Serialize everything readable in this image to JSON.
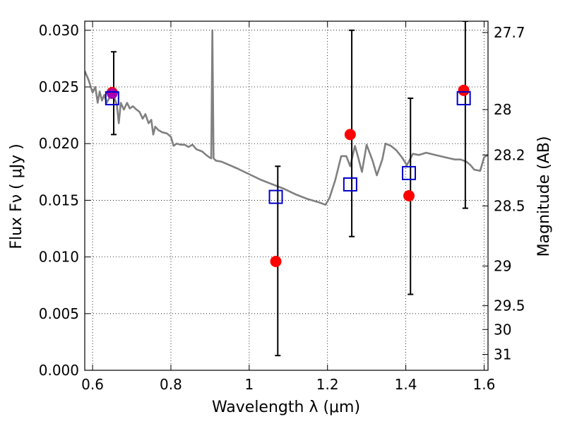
{
  "chart_data": {
    "type": "scatter",
    "title": "",
    "xlabel": "Wavelength  λ (μm)",
    "ylabel": "Flux  Fν  ( μJy )",
    "ylabel_right": "Magnitude (AB)",
    "xlim": [
      0.58,
      1.61
    ],
    "ylim": [
      0.0,
      0.0308
    ],
    "grid": true,
    "grid_style": "dotted",
    "x_ticks": [
      0.6,
      0.8,
      1.0,
      1.2,
      1.4,
      1.6
    ],
    "x_tick_labels": [
      "0.6",
      "0.8",
      "1",
      "1.2",
      "1.4",
      "1.6"
    ],
    "y_ticks": [
      0.0,
      0.005,
      0.01,
      0.015,
      0.02,
      0.025,
      0.03
    ],
    "y_tick_labels": [
      "0.000",
      "0.005",
      "0.010",
      "0.015",
      "0.020",
      "0.025",
      "0.030"
    ],
    "right_ticks": [
      {
        "flux": 0.0298,
        "label": "27.7"
      },
      {
        "flux": 0.023,
        "label": "28"
      },
      {
        "flux": 0.019,
        "label": "28.2"
      },
      {
        "flux": 0.0145,
        "label": "28.5"
      },
      {
        "flux": 0.0092,
        "label": "29"
      },
      {
        "flux": 0.0057,
        "label": "29.5"
      },
      {
        "flux": 0.0036,
        "label": "30"
      },
      {
        "flux": 0.0014,
        "label": "31"
      }
    ],
    "series": [
      {
        "kind": "line",
        "color": "#808080",
        "points": [
          [
            0.58,
            0.0264
          ],
          [
            0.59,
            0.0256
          ],
          [
            0.6,
            0.0245
          ],
          [
            0.607,
            0.025
          ],
          [
            0.613,
            0.0236
          ],
          [
            0.618,
            0.0246
          ],
          [
            0.624,
            0.0238
          ],
          [
            0.63,
            0.0243
          ],
          [
            0.636,
            0.0236
          ],
          [
            0.642,
            0.024
          ],
          [
            0.648,
            0.0244
          ],
          [
            0.655,
            0.0241
          ],
          [
            0.662,
            0.0234
          ],
          [
            0.667,
            0.0218
          ],
          [
            0.672,
            0.0236
          ],
          [
            0.68,
            0.023
          ],
          [
            0.688,
            0.0236
          ],
          [
            0.695,
            0.0231
          ],
          [
            0.703,
            0.0233
          ],
          [
            0.712,
            0.023
          ],
          [
            0.72,
            0.0228
          ],
          [
            0.728,
            0.0222
          ],
          [
            0.735,
            0.0226
          ],
          [
            0.743,
            0.0218
          ],
          [
            0.75,
            0.0221
          ],
          [
            0.755,
            0.0208
          ],
          [
            0.76,
            0.0215
          ],
          [
            0.768,
            0.0212
          ],
          [
            0.778,
            0.021
          ],
          [
            0.79,
            0.0209
          ],
          [
            0.8,
            0.0206
          ],
          [
            0.807,
            0.0198
          ],
          [
            0.815,
            0.02
          ],
          [
            0.825,
            0.0199
          ],
          [
            0.835,
            0.0199
          ],
          [
            0.845,
            0.0197
          ],
          [
            0.855,
            0.0199
          ],
          [
            0.865,
            0.0195
          ],
          [
            0.88,
            0.0193
          ],
          [
            0.89,
            0.019
          ],
          [
            0.898,
            0.0188
          ],
          [
            0.903,
            0.0187
          ],
          [
            0.906,
            0.03
          ],
          [
            0.909,
            0.0187
          ],
          [
            0.915,
            0.0185
          ],
          [
            0.93,
            0.0184
          ],
          [
            0.95,
            0.0181
          ],
          [
            0.97,
            0.0178
          ],
          [
            1.0,
            0.0173
          ],
          [
            1.03,
            0.0168
          ],
          [
            1.06,
            0.0164
          ],
          [
            1.09,
            0.016
          ],
          [
            1.12,
            0.0155
          ],
          [
            1.15,
            0.0151
          ],
          [
            1.18,
            0.0148
          ],
          [
            1.195,
            0.0146
          ],
          [
            1.205,
            0.0152
          ],
          [
            1.22,
            0.0168
          ],
          [
            1.235,
            0.0189
          ],
          [
            1.248,
            0.0189
          ],
          [
            1.258,
            0.018
          ],
          [
            1.27,
            0.0198
          ],
          [
            1.276,
            0.0191
          ],
          [
            1.288,
            0.0175
          ],
          [
            1.3,
            0.0199
          ],
          [
            1.315,
            0.0185
          ],
          [
            1.326,
            0.0172
          ],
          [
            1.34,
            0.0186
          ],
          [
            1.348,
            0.02
          ],
          [
            1.362,
            0.0198
          ],
          [
            1.376,
            0.0194
          ],
          [
            1.39,
            0.0188
          ],
          [
            1.403,
            0.0181
          ],
          [
            1.418,
            0.0191
          ],
          [
            1.434,
            0.019
          ],
          [
            1.452,
            0.0192
          ],
          [
            1.475,
            0.019
          ],
          [
            1.5,
            0.0188
          ],
          [
            1.525,
            0.0186
          ],
          [
            1.54,
            0.0186
          ],
          [
            1.555,
            0.0184
          ],
          [
            1.565,
            0.0181
          ],
          [
            1.575,
            0.0177
          ],
          [
            1.59,
            0.0176
          ],
          [
            1.6,
            0.0188
          ],
          [
            1.61,
            0.019
          ]
        ]
      },
      {
        "kind": "squares",
        "color": "#0000cc",
        "points": [
          [
            0.65,
            0.024
          ],
          [
            1.068,
            0.0153
          ],
          [
            1.258,
            0.0164
          ],
          [
            1.408,
            0.0174
          ],
          [
            1.548,
            0.024
          ]
        ]
      },
      {
        "kind": "circles",
        "color": "#ff0000",
        "points": [
          [
            0.65,
            0.0245
          ],
          [
            1.068,
            0.0096
          ],
          [
            1.258,
            0.0208
          ],
          [
            1.408,
            0.0154
          ],
          [
            1.548,
            0.0247
          ]
        ]
      },
      {
        "kind": "errorbars",
        "color": "#000000",
        "points": [
          {
            "x": 0.654,
            "ylo": 0.0208,
            "yhi": 0.0281
          },
          {
            "x": 1.073,
            "ylo": 0.0013,
            "yhi": 0.018
          },
          {
            "x": 1.262,
            "ylo": 0.0118,
            "yhi": 0.03
          },
          {
            "x": 1.412,
            "ylo": 0.0067,
            "yhi": 0.024
          },
          {
            "x": 1.552,
            "ylo": 0.0143,
            "yhi": 0.0308
          }
        ]
      }
    ]
  }
}
